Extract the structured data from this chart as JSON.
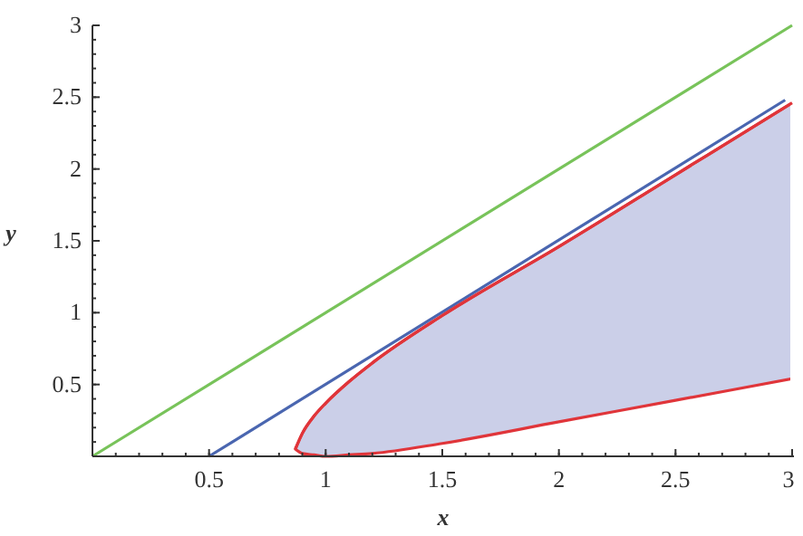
{
  "chart_data": {
    "type": "line",
    "xlabel": "x",
    "ylabel": "y",
    "xlim": [
      0,
      3
    ],
    "ylim": [
      0,
      3
    ],
    "xticks": [
      0.5,
      1,
      1.5,
      2,
      2.5,
      3
    ],
    "yticks": [
      0.5,
      1,
      1.5,
      2,
      2.5,
      3
    ],
    "grid": false,
    "marker": "none",
    "line_style": "solid",
    "series": [
      {
        "color": "#78c35a",
        "x": [
          0,
          3
        ],
        "values": [
          0,
          3
        ]
      },
      {
        "color": "#4a66b0",
        "x": [
          0.5,
          2.97
        ],
        "values": [
          0,
          2.48
        ]
      },
      {
        "color": "#e0353a",
        "x": [
          0.87,
          0.9,
          0.95,
          1,
          1.1,
          1.2,
          1.5,
          2,
          2.5,
          3
        ],
        "values": [
          0.05,
          0.16,
          0.28,
          0.37,
          0.52,
          0.65,
          0.98,
          1.46,
          1.96,
          2.46
        ],
        "upper": [
          0.05,
          0.16,
          0.28,
          0.37,
          0.52,
          0.65,
          0.98,
          1.46,
          1.96,
          2.46
        ],
        "lower": [
          0.05,
          0.02,
          0.01,
          0,
          0.01,
          0.02,
          0.09,
          0.24,
          0.39,
          0.54
        ]
      }
    ]
  }
}
